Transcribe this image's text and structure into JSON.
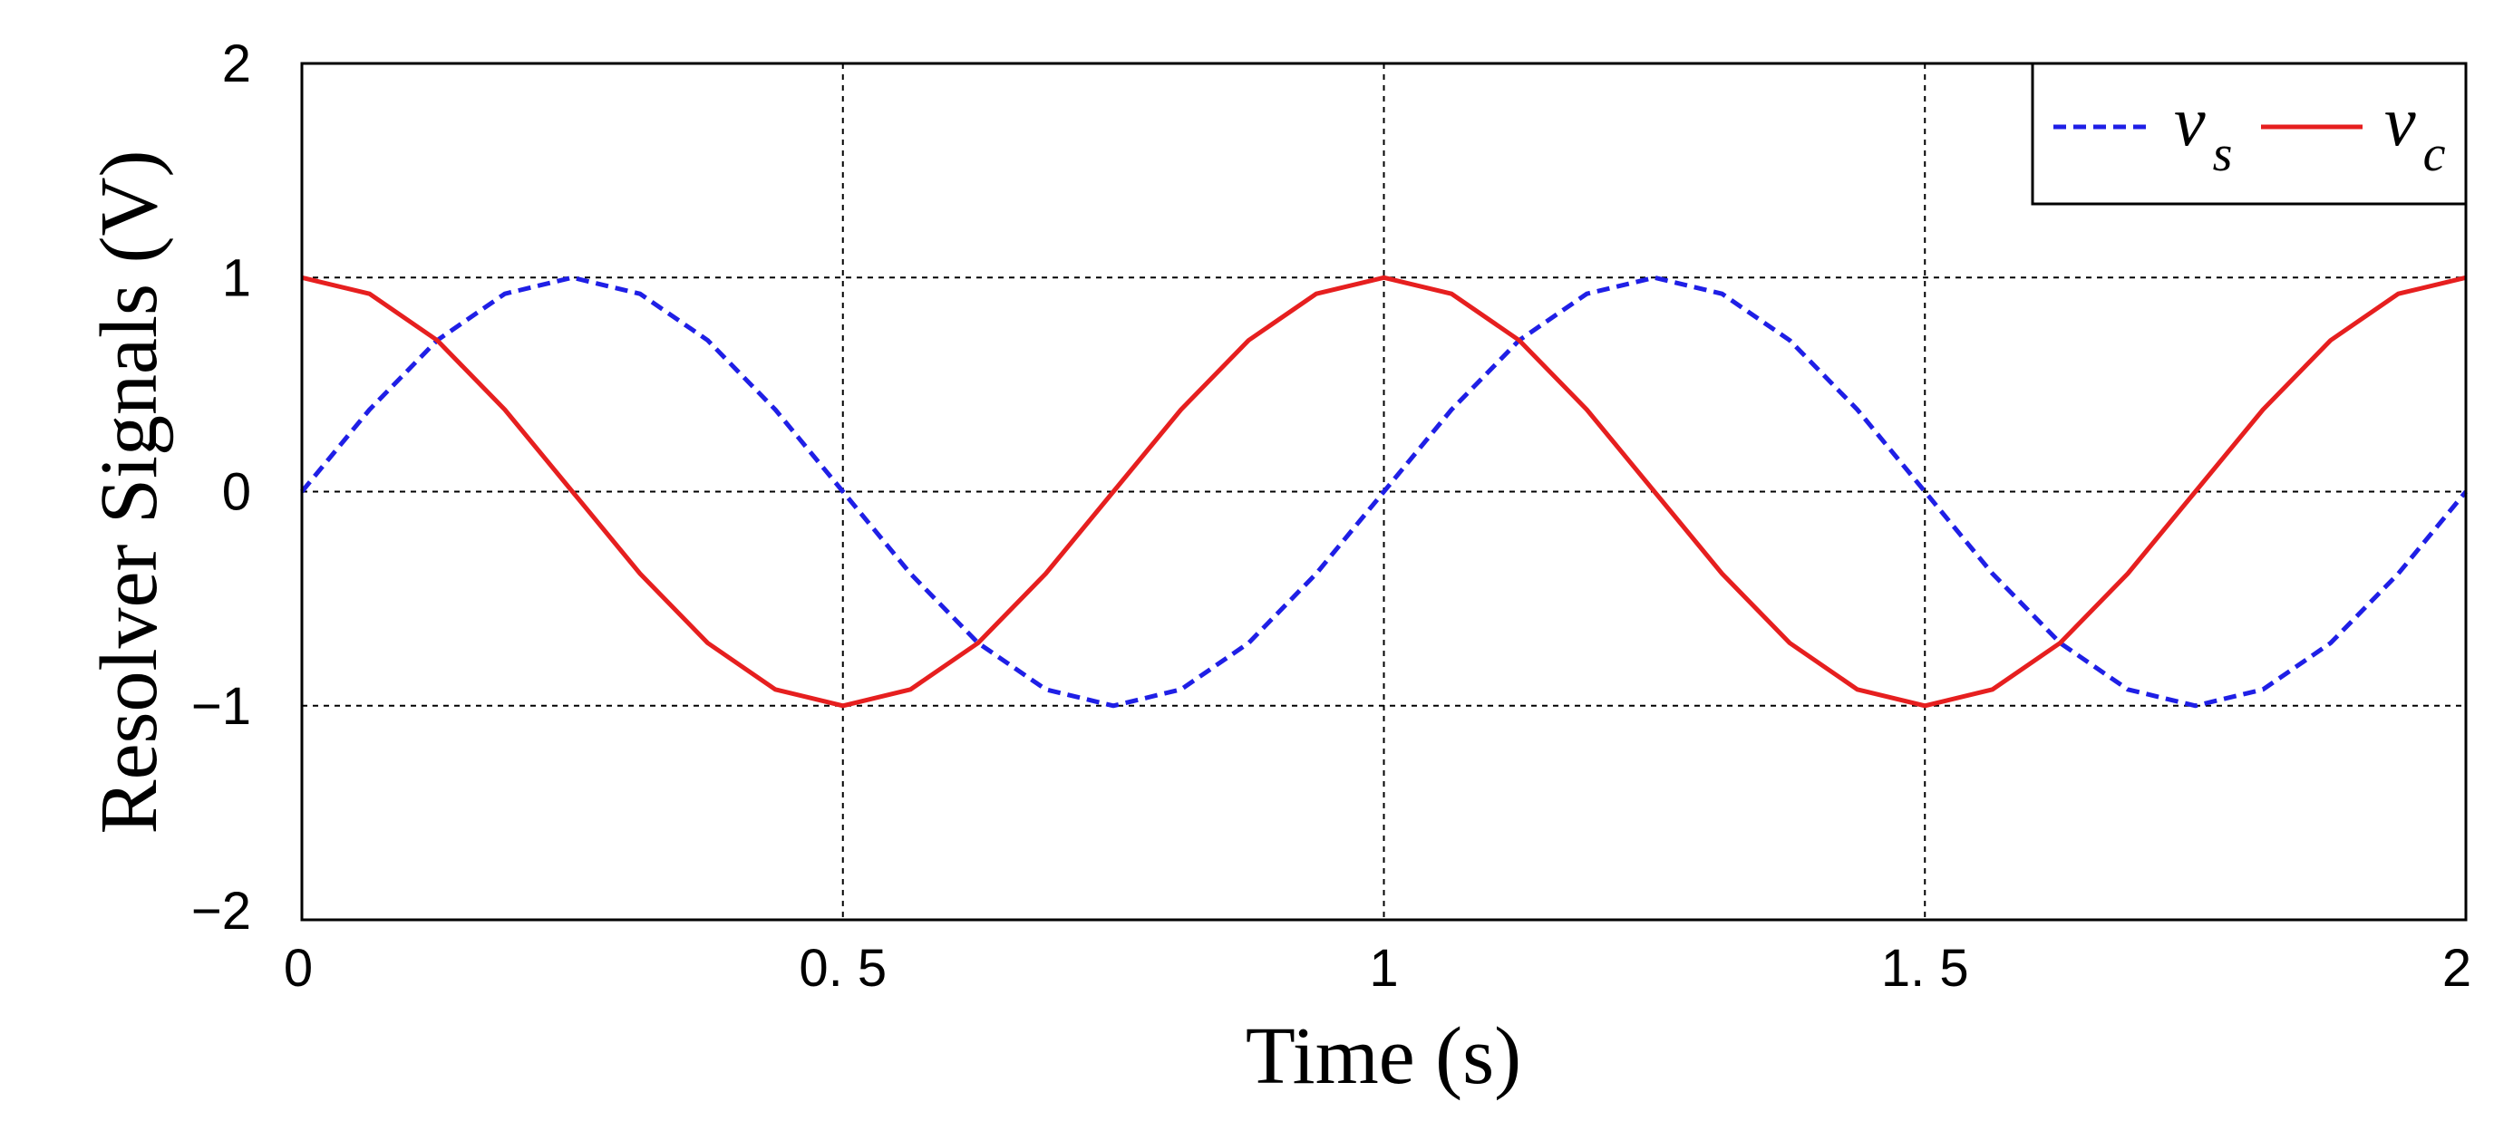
{
  "chart_data": {
    "type": "line",
    "title": "",
    "xlabel": "Time (s)",
    "ylabel": "Resolver Signals (V)",
    "xlim": [
      0,
      2
    ],
    "ylim": [
      -2,
      2
    ],
    "x_ticks": [
      0,
      0.5,
      1,
      1.5,
      2
    ],
    "x_tick_labels": [
      "0",
      "0. 5",
      "1",
      "1. 5",
      "2"
    ],
    "y_ticks": [
      -2,
      -1,
      0,
      1,
      2
    ],
    "y_tick_labels": [
      "−2",
      "−1",
      "0",
      "1",
      "2"
    ],
    "grid": true,
    "legend_position": "top-right",
    "x": [
      0,
      0.0625,
      0.125,
      0.1875,
      0.25,
      0.3125,
      0.375,
      0.4375,
      0.5,
      0.5625,
      0.625,
      0.6875,
      0.75,
      0.8125,
      0.875,
      0.9375,
      1,
      1.0625,
      1.125,
      1.1875,
      1.25,
      1.3125,
      1.375,
      1.4375,
      1.5,
      1.5625,
      1.625,
      1.6875,
      1.75,
      1.8125,
      1.875,
      1.9375,
      2
    ],
    "series": [
      {
        "name": "v",
        "name_sub": "s",
        "color": "#1f1fe6",
        "style": "dashed",
        "values": [
          0,
          0.383,
          0.707,
          0.924,
          1,
          0.924,
          0.707,
          0.383,
          0,
          -0.383,
          -0.707,
          -0.924,
          -1,
          -0.924,
          -0.707,
          -0.383,
          0,
          0.383,
          0.707,
          0.924,
          1,
          0.924,
          0.707,
          0.383,
          0,
          -0.383,
          -0.707,
          -0.924,
          -1,
          -0.924,
          -0.707,
          -0.383,
          0
        ]
      },
      {
        "name": "v",
        "name_sub": "c",
        "color": "#e61f1f",
        "style": "solid",
        "values": [
          1,
          0.924,
          0.707,
          0.383,
          0,
          -0.383,
          -0.707,
          -0.924,
          -1,
          -0.924,
          -0.707,
          -0.383,
          0,
          0.383,
          0.707,
          0.924,
          1,
          0.924,
          0.707,
          0.383,
          0,
          -0.383,
          -0.707,
          -0.924,
          -1,
          -0.924,
          -0.707,
          -0.383,
          0,
          0.383,
          0.707,
          0.924,
          1
        ]
      }
    ]
  }
}
